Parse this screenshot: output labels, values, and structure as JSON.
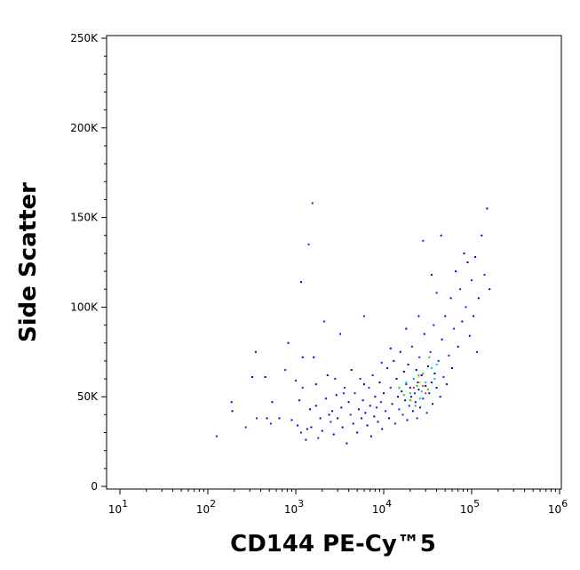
{
  "chart_data": {
    "type": "scatter",
    "xlabel": "CD144 PE-Cy™5",
    "ylabel": "Side Scatter",
    "x_scale": "log",
    "xlim": [
      10,
      1000000
    ],
    "ylim": [
      0,
      250000
    ],
    "x_ticks": [
      {
        "base": "10",
        "exp": "1",
        "value": 10
      },
      {
        "base": "10",
        "exp": "2",
        "value": 100
      },
      {
        "base": "10",
        "exp": "3",
        "value": 1000
      },
      {
        "base": "10",
        "exp": "4",
        "value": 10000
      },
      {
        "base": "10",
        "exp": "5",
        "value": 100000
      },
      {
        "base": "10",
        "exp": "6",
        "value": 1000000
      }
    ],
    "y_ticks": [
      {
        "label": "0",
        "value": 0
      },
      {
        "label": "50K",
        "value": 50000
      },
      {
        "label": "100K",
        "value": 100000
      },
      {
        "label": "150K",
        "value": 150000
      },
      {
        "label": "200K",
        "value": 200000
      },
      {
        "label": "250K",
        "value": 250000
      }
    ],
    "density_colors": [
      "#0000cc",
      "#1a1aff",
      "#00bfff",
      "#22cc22",
      "#ffee00",
      "#ff2200"
    ],
    "grid": false,
    "points": [
      [
        126,
        28000
      ],
      [
        186,
        47000
      ],
      [
        190,
        42000
      ],
      [
        270,
        33000
      ],
      [
        320,
        61000
      ],
      [
        350,
        75000
      ],
      [
        360,
        38000
      ],
      [
        450,
        61000
      ],
      [
        470,
        38000
      ],
      [
        520,
        35000
      ],
      [
        540,
        47000
      ],
      [
        650,
        38000
      ],
      [
        760,
        65000
      ],
      [
        820,
        80000
      ],
      [
        900,
        37000
      ],
      [
        1000,
        59000
      ],
      [
        1050,
        34000
      ],
      [
        1100,
        48000
      ],
      [
        1150,
        30000
      ],
      [
        1150,
        114000
      ],
      [
        1200,
        72000
      ],
      [
        1200,
        55000
      ],
      [
        1300,
        26000
      ],
      [
        1350,
        32000
      ],
      [
        1400,
        135000
      ],
      [
        1450,
        43000
      ],
      [
        1500,
        33000
      ],
      [
        1550,
        158000
      ],
      [
        1600,
        72000
      ],
      [
        1700,
        45000
      ],
      [
        1800,
        27000
      ],
      [
        1900,
        38000
      ],
      [
        2000,
        31000
      ],
      [
        2100,
        92000
      ],
      [
        2200,
        49000
      ],
      [
        2300,
        62000
      ],
      [
        2500,
        36000
      ],
      [
        2600,
        42000
      ],
      [
        2700,
        29000
      ],
      [
        2800,
        60000
      ],
      [
        2900,
        51000
      ],
      [
        3000,
        38000
      ],
      [
        3200,
        85000
      ],
      [
        3300,
        44000
      ],
      [
        3400,
        33000
      ],
      [
        3600,
        55000
      ],
      [
        3800,
        24000
      ],
      [
        4000,
        47000
      ],
      [
        4200,
        40000
      ],
      [
        4300,
        65000
      ],
      [
        4500,
        35000
      ],
      [
        4700,
        52000
      ],
      [
        5000,
        30000
      ],
      [
        5200,
        43000
      ],
      [
        5400,
        60000
      ],
      [
        5600,
        38000
      ],
      [
        5800,
        48000
      ],
      [
        6000,
        95000
      ],
      [
        6200,
        41000
      ],
      [
        6500,
        34000
      ],
      [
        6800,
        55000
      ],
      [
        7000,
        45000
      ],
      [
        7200,
        28000
      ],
      [
        7500,
        62000
      ],
      [
        7800,
        39000
      ],
      [
        8000,
        50000
      ],
      [
        8300,
        44000
      ],
      [
        8600,
        36000
      ],
      [
        9000,
        58000
      ],
      [
        9300,
        47000
      ],
      [
        9600,
        32000
      ],
      [
        10000,
        52000
      ],
      [
        10500,
        42000
      ],
      [
        11000,
        66000
      ],
      [
        11500,
        38000
      ],
      [
        12000,
        55000
      ],
      [
        12500,
        46000
      ],
      [
        13000,
        70000
      ],
      [
        13500,
        35000
      ],
      [
        14000,
        60000
      ],
      [
        14500,
        50000
      ],
      [
        15000,
        43000
      ],
      [
        15500,
        75000
      ],
      [
        16000,
        53000
      ],
      [
        16500,
        40000
      ],
      [
        17000,
        64000
      ],
      [
        17500,
        48000
      ],
      [
        18000,
        57000
      ],
      [
        18500,
        37000
      ],
      [
        19000,
        68000
      ],
      [
        19500,
        45000
      ],
      [
        20000,
        55000
      ],
      [
        20500,
        50000
      ],
      [
        21000,
        78000
      ],
      [
        21500,
        42000
      ],
      [
        22000,
        60000
      ],
      [
        22500,
        52000
      ],
      [
        23000,
        47000
      ],
      [
        23500,
        65000
      ],
      [
        24000,
        38000
      ],
      [
        24500,
        58000
      ],
      [
        25000,
        54000
      ],
      [
        25500,
        72000
      ],
      [
        26000,
        44000
      ],
      [
        27000,
        62000
      ],
      [
        28000,
        49000
      ],
      [
        29000,
        85000
      ],
      [
        30000,
        56000
      ],
      [
        31000,
        41000
      ],
      [
        32000,
        67000
      ],
      [
        33000,
        52000
      ],
      [
        34000,
        75000
      ],
      [
        35000,
        58000
      ],
      [
        36000,
        46000
      ],
      [
        37000,
        90000
      ],
      [
        38000,
        63000
      ],
      [
        40000,
        55000
      ],
      [
        42000,
        70000
      ],
      [
        44000,
        50000
      ],
      [
        46000,
        82000
      ],
      [
        48000,
        61000
      ],
      [
        50000,
        95000
      ],
      [
        52000,
        57000
      ],
      [
        55000,
        73000
      ],
      [
        58000,
        105000
      ],
      [
        60000,
        66000
      ],
      [
        63000,
        88000
      ],
      [
        66000,
        120000
      ],
      [
        70000,
        78000
      ],
      [
        74000,
        110000
      ],
      [
        78000,
        92000
      ],
      [
        82000,
        130000
      ],
      [
        86000,
        100000
      ],
      [
        90000,
        125000
      ],
      [
        95000,
        84000
      ],
      [
        100000,
        115000
      ],
      [
        105000,
        95000
      ],
      [
        110000,
        128000
      ],
      [
        115000,
        75000
      ],
      [
        120000,
        105000
      ],
      [
        130000,
        140000
      ],
      [
        140000,
        118000
      ],
      [
        150000,
        155000
      ],
      [
        160000,
        110000
      ],
      [
        28000,
        137000
      ],
      [
        35000,
        118000
      ],
      [
        45000,
        140000
      ],
      [
        40000,
        108000
      ],
      [
        25000,
        95000
      ],
      [
        18000,
        88000
      ],
      [
        3500,
        52000
      ],
      [
        2400,
        40000
      ],
      [
        1700,
        57000
      ],
      [
        9500,
        69000
      ],
      [
        12000,
        77000
      ],
      [
        6000,
        57000
      ]
    ],
    "dense_points": [
      [
        15000,
        55000
      ],
      [
        18000,
        58000
      ],
      [
        20000,
        52000
      ],
      [
        22000,
        60000
      ],
      [
        24000,
        56000
      ],
      [
        26000,
        49000
      ],
      [
        28000,
        63000
      ],
      [
        30000,
        58000
      ],
      [
        32000,
        54000
      ],
      [
        35000,
        66000
      ],
      [
        20000,
        48000
      ],
      [
        25000,
        62000
      ],
      [
        17000,
        51000
      ],
      [
        38000,
        60000
      ],
      [
        33000,
        72000
      ],
      [
        40000,
        68000
      ],
      [
        23000,
        45000
      ],
      [
        27000,
        53000
      ]
    ],
    "hot_points": [
      [
        22000,
        55000
      ],
      [
        26000,
        58000
      ],
      [
        30000,
        52000
      ],
      [
        25000,
        61000
      ],
      [
        28000,
        56000
      ],
      [
        21000,
        48000
      ]
    ]
  }
}
